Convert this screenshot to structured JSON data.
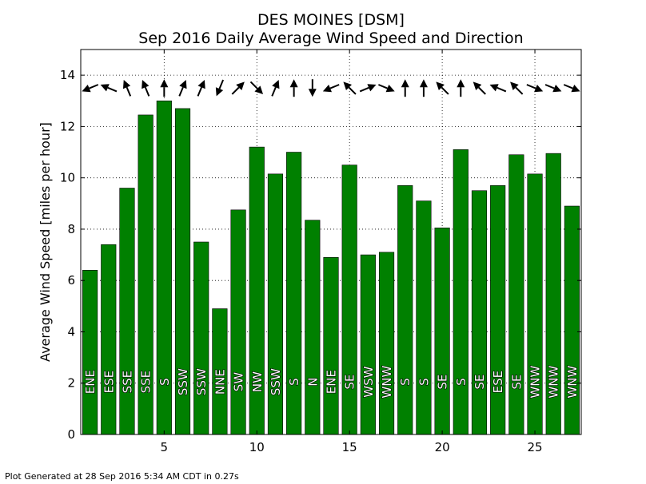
{
  "chart_data": {
    "type": "bar",
    "title": "DES MOINES [DSM]",
    "subtitle": "Sep 2016 Daily Average Wind Speed and Direction",
    "xlabel": "",
    "ylabel": "Average Wind Speed [miles per hour]",
    "xlim": [
      0.5,
      27.5
    ],
    "ylim": [
      0,
      15
    ],
    "xticks": [
      5,
      10,
      15,
      20,
      25
    ],
    "yticks": [
      0,
      2,
      4,
      6,
      8,
      10,
      12,
      14
    ],
    "grid": true,
    "bar_color": "#008000",
    "days": [
      1,
      2,
      3,
      4,
      5,
      6,
      7,
      8,
      9,
      10,
      11,
      12,
      13,
      14,
      15,
      16,
      17,
      18,
      19,
      20,
      21,
      22,
      23,
      24,
      25,
      26,
      27
    ],
    "values": [
      6.4,
      7.4,
      9.6,
      12.45,
      13.0,
      12.7,
      7.5,
      4.9,
      8.75,
      11.2,
      10.15,
      11.0,
      8.35,
      6.9,
      10.5,
      7.0,
      7.1,
      9.7,
      9.1,
      8.05,
      11.1,
      9.5,
      9.7,
      10.9,
      10.15,
      10.95,
      8.9
    ],
    "directions": [
      "ENE",
      "ESE",
      "SSE",
      "SSE",
      "S",
      "SSW",
      "SSW",
      "NNE",
      "SW",
      "NW",
      "SSW",
      "S",
      "N",
      "ENE",
      "SE",
      "WSW",
      "WNW",
      "S",
      "S",
      "SE",
      "S",
      "SE",
      "ESE",
      "SE",
      "WNW",
      "WNW",
      "WNW"
    ],
    "arrow_level": 13.5,
    "footer": "Plot Generated at 28 Sep 2016 5:34 AM CDT in 0.27s"
  }
}
